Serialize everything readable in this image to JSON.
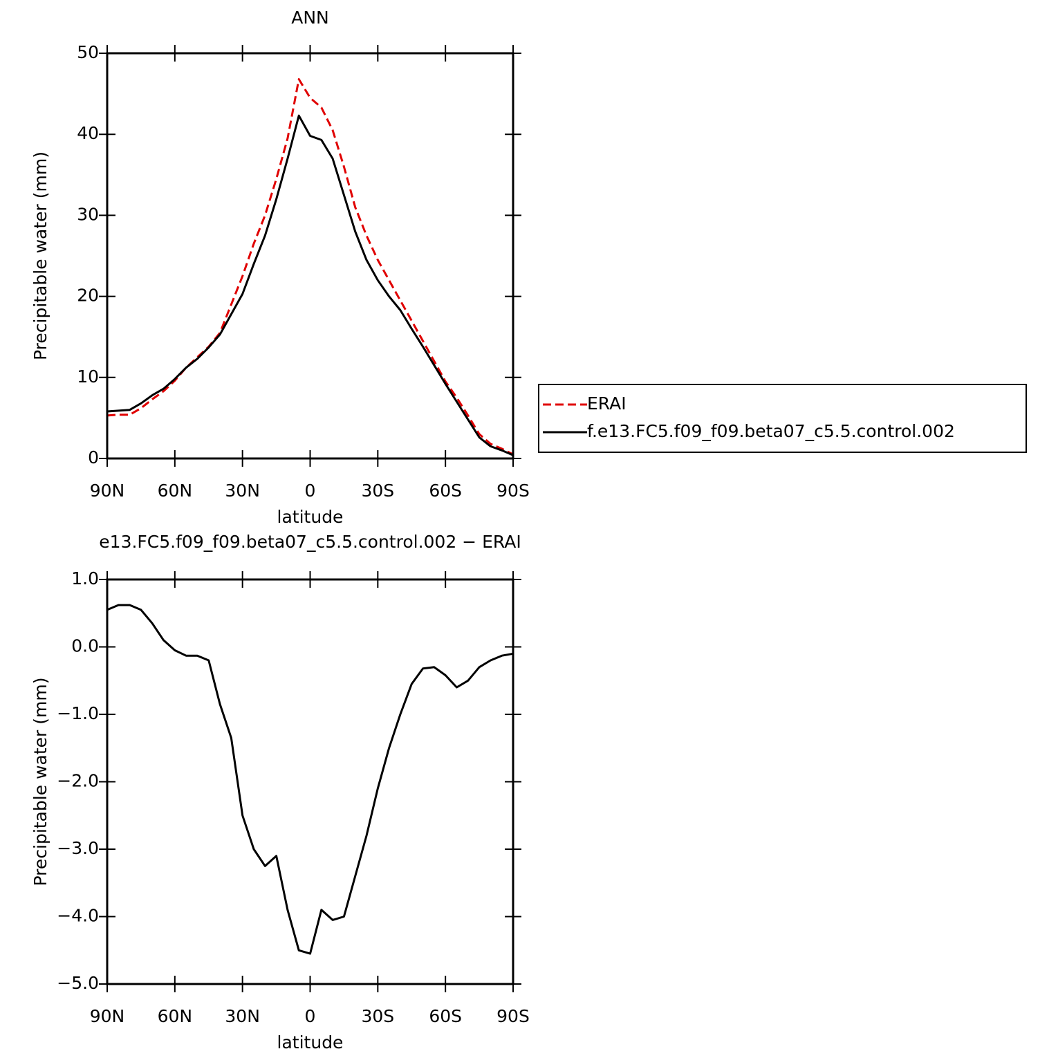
{
  "chart_data": [
    {
      "type": "line",
      "title": "ANN",
      "xlabel": "latitude",
      "ylabel": "Precipitable water (mm)",
      "x": [
        90,
        85,
        80,
        75,
        70,
        65,
        60,
        55,
        50,
        45,
        40,
        35,
        30,
        25,
        20,
        15,
        10,
        5,
        0,
        -5,
        -10,
        -15,
        -20,
        -25,
        -30,
        -35,
        -40,
        -45,
        -50,
        -55,
        -60,
        -65,
        -70,
        -75,
        -80,
        -85,
        -90
      ],
      "series": [
        {
          "name": "ERAI",
          "color": "#e00000",
          "dash": true,
          "values": [
            5.3,
            5.4,
            5.4,
            6.2,
            7.3,
            8.3,
            9.6,
            11.2,
            12.5,
            13.8,
            15.5,
            19.0,
            22.5,
            26.5,
            30.0,
            34.5,
            39.5,
            46.8,
            44.5,
            43.3,
            40.5,
            36.0,
            31.0,
            27.5,
            24.5,
            22.0,
            19.5,
            17.0,
            14.5,
            12.0,
            9.5,
            7.5,
            5.3,
            3.0,
            1.8,
            1.2,
            0.5
          ]
        },
        {
          "name": "f.e13.FC5.f09_f09.beta07_c5.5.control.002",
          "color": "#000000",
          "dash": false,
          "values": [
            5.8,
            5.9,
            6.0,
            6.8,
            7.8,
            8.6,
            9.8,
            11.2,
            12.3,
            13.7,
            15.3,
            17.8,
            20.3,
            24.0,
            27.5,
            32.0,
            37.0,
            42.3,
            39.8,
            39.3,
            37.0,
            32.5,
            28.0,
            24.5,
            22.0,
            20.0,
            18.3,
            16.0,
            13.8,
            11.5,
            9.2,
            7.0,
            4.8,
            2.6,
            1.5,
            1.0,
            0.4
          ]
        }
      ],
      "xlim": [
        90,
        -90
      ],
      "xticks": [
        {
          "value": 90,
          "label": "90N"
        },
        {
          "value": 60,
          "label": "60N"
        },
        {
          "value": 30,
          "label": "30N"
        },
        0,
        {
          "value": -30,
          "label": "30S"
        },
        {
          "value": -60,
          "label": "60S"
        },
        {
          "value": -90,
          "label": "90S"
        }
      ],
      "ylim": [
        0,
        50
      ],
      "yticks": [
        0,
        10,
        20,
        30,
        40,
        50
      ],
      "legend": "right"
    },
    {
      "type": "line",
      "title": "e13.FC5.f09_f09.beta07_c5.5.control.002 − ERAI",
      "xlabel": "latitude",
      "ylabel": "Precipitable water (mm)",
      "x": [
        90,
        85,
        80,
        75,
        70,
        65,
        60,
        55,
        50,
        45,
        40,
        35,
        30,
        25,
        20,
        15,
        10,
        5,
        0,
        -5,
        -10,
        -15,
        -20,
        -25,
        -30,
        -35,
        -40,
        -45,
        -50,
        -55,
        -60,
        -65,
        -70,
        -75,
        -80,
        -85,
        -90
      ],
      "series": [
        {
          "color": "#000000",
          "dash": false,
          "values": [
            0.55,
            0.62,
            0.62,
            0.55,
            0.35,
            0.1,
            -0.05,
            -0.13,
            -0.13,
            -0.2,
            -0.85,
            -1.35,
            -2.5,
            -3.0,
            -3.25,
            -3.1,
            -3.9,
            -4.5,
            -4.55,
            -3.9,
            -4.05,
            -4.0,
            -3.4,
            -2.8,
            -2.1,
            -1.5,
            -1.0,
            -0.55,
            -0.32,
            -0.3,
            -0.42,
            -0.6,
            -0.5,
            -0.3,
            -0.2,
            -0.13,
            -0.1
          ]
        }
      ],
      "xlim": [
        90,
        -90
      ],
      "xticks": [
        {
          "value": 90,
          "label": "90N"
        },
        {
          "value": 60,
          "label": "60N"
        },
        {
          "value": 30,
          "label": "30N"
        },
        0,
        {
          "value": -30,
          "label": "30S"
        },
        {
          "value": -60,
          "label": "60S"
        },
        {
          "value": -90,
          "label": "90S"
        }
      ],
      "ylim": [
        -5,
        1
      ],
      "yticks": [
        {
          "value": 1,
          "label": "1.0"
        },
        {
          "value": 0,
          "label": "0.0"
        },
        {
          "value": -1,
          "label": "−1.0"
        },
        {
          "value": -2,
          "label": "−2.0"
        },
        {
          "value": -3,
          "label": "−3.0"
        },
        {
          "value": -4,
          "label": "−4.0"
        },
        {
          "value": -5,
          "label": "−5.0"
        }
      ]
    }
  ]
}
